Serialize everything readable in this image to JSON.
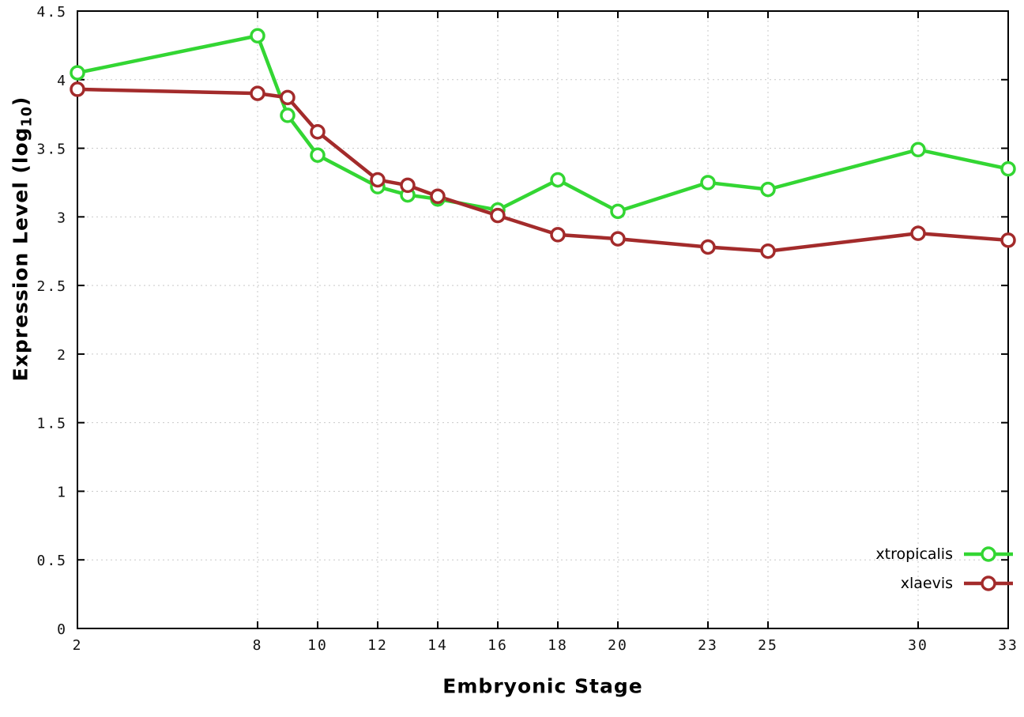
{
  "figure": {
    "background": "#ffffff",
    "border_color": "#000000",
    "grid_color": "#c9c9c9",
    "tick_color": "#000000"
  },
  "chart_data": {
    "type": "line",
    "title": "",
    "xlabel": "Embryonic Stage",
    "ylabel": {
      "pre": "Expression Level (log",
      "sub": "10",
      "post": ")"
    },
    "x": [
      2,
      8,
      9,
      10,
      12,
      13,
      14,
      16,
      18,
      20,
      23,
      25,
      30,
      33
    ],
    "xlim": [
      2,
      33
    ],
    "xticks": [
      2,
      8,
      10,
      12,
      14,
      16,
      18,
      20,
      23,
      25,
      30,
      33
    ],
    "ylim": [
      0,
      4.5
    ],
    "yticks": [
      0,
      0.5,
      1,
      1.5,
      2,
      2.5,
      3,
      3.5,
      4,
      4.5
    ],
    "grid": true,
    "legend_position": "bottom-right",
    "series": [
      {
        "name": "xtropicalis",
        "color": "#33d633",
        "marker": "circle",
        "values": [
          4.05,
          4.32,
          3.74,
          3.45,
          3.22,
          3.16,
          3.13,
          3.05,
          3.27,
          3.04,
          3.25,
          3.2,
          3.49,
          3.35
        ]
      },
      {
        "name": "xlaevis",
        "color": "#a32b2b",
        "marker": "circle",
        "values": [
          3.93,
          3.9,
          3.87,
          3.62,
          3.27,
          3.23,
          3.15,
          3.01,
          2.87,
          2.84,
          2.78,
          2.75,
          2.88,
          2.83
        ]
      }
    ]
  }
}
